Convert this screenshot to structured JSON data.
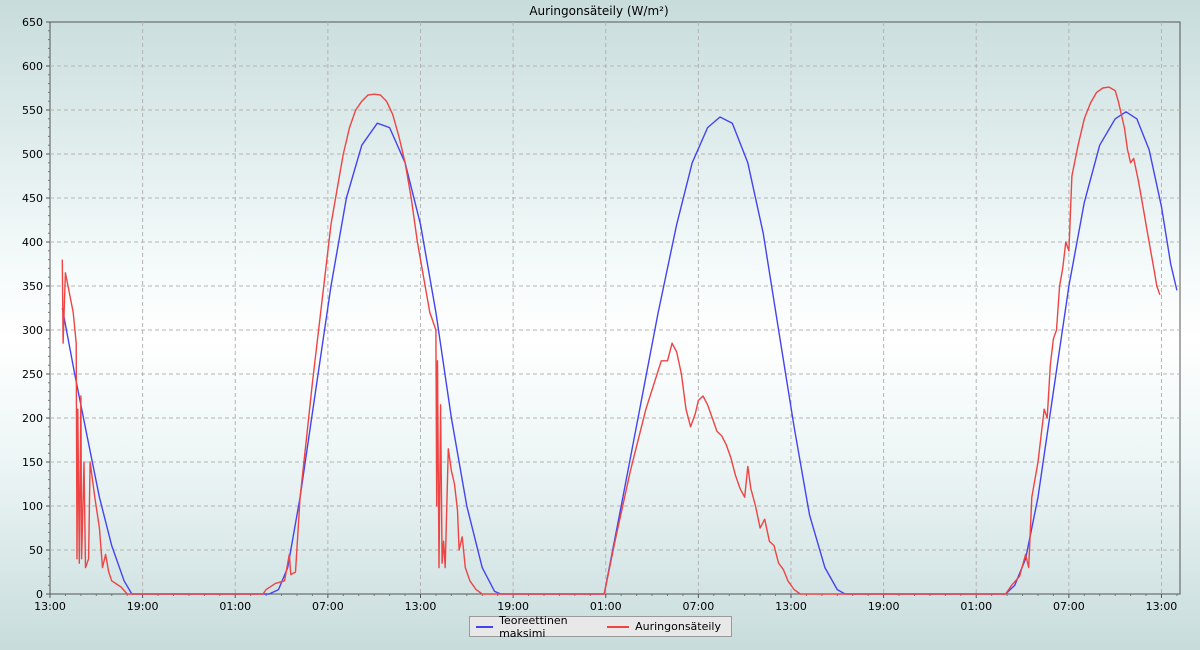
{
  "chart_data": {
    "type": "line",
    "title": "Auringonsäteily (W/m²)",
    "xlabel": "",
    "ylabel": "",
    "ylim": [
      0,
      650
    ],
    "yticks": [
      0,
      50,
      100,
      150,
      200,
      250,
      300,
      350,
      400,
      450,
      500,
      550,
      600,
      650
    ],
    "x_tick_labels": [
      {
        "hour": 0,
        "label": "13:00"
      },
      {
        "hour": 6,
        "label": "19:00"
      },
      {
        "hour": 12,
        "label": "01:00"
      },
      {
        "hour": 18,
        "label": "07:00"
      },
      {
        "hour": 24,
        "label": "13:00"
      },
      {
        "hour": 30,
        "label": "19:00"
      },
      {
        "hour": 36,
        "label": "01:00"
      },
      {
        "hour": 42,
        "label": "07:00"
      },
      {
        "hour": 48,
        "label": "13:00"
      },
      {
        "hour": 54,
        "label": "19:00"
      },
      {
        "hour": 60,
        "label": "01:00"
      },
      {
        "hour": 66,
        "label": "07:00"
      },
      {
        "hour": 72,
        "label": "13:00"
      }
    ],
    "xlim_hours": [
      0,
      73.2
    ],
    "grid": true,
    "legend_position": "bottom-center",
    "series": [
      {
        "name": "Teoreettinen maksimi",
        "color": "#4444ee",
        "points": [
          [
            0.8,
            325
          ],
          [
            1.6,
            250
          ],
          [
            2.4,
            180
          ],
          [
            3.2,
            110
          ],
          [
            4.0,
            55
          ],
          [
            4.8,
            15
          ],
          [
            5.3,
            0
          ],
          [
            14.2,
            0
          ],
          [
            14.8,
            5
          ],
          [
            15.4,
            30
          ],
          [
            16.2,
            110
          ],
          [
            17.2,
            230
          ],
          [
            18.2,
            350
          ],
          [
            19.2,
            450
          ],
          [
            20.2,
            510
          ],
          [
            21.2,
            535
          ],
          [
            22.0,
            530
          ],
          [
            23.0,
            490
          ],
          [
            24.0,
            420
          ],
          [
            25.0,
            320
          ],
          [
            26.0,
            200
          ],
          [
            27.0,
            100
          ],
          [
            28.0,
            30
          ],
          [
            28.8,
            3
          ],
          [
            29.2,
            0
          ],
          [
            35.9,
            0
          ],
          [
            37.0,
            100
          ],
          [
            38.2,
            210
          ],
          [
            39.4,
            320
          ],
          [
            40.6,
            420
          ],
          [
            41.6,
            490
          ],
          [
            42.6,
            530
          ],
          [
            43.4,
            542
          ],
          [
            44.2,
            535
          ],
          [
            45.2,
            490
          ],
          [
            46.2,
            410
          ],
          [
            47.2,
            300
          ],
          [
            48.2,
            190
          ],
          [
            49.2,
            90
          ],
          [
            50.2,
            30
          ],
          [
            51.0,
            5
          ],
          [
            51.5,
            0
          ],
          [
            61.9,
            0
          ],
          [
            62.5,
            10
          ],
          [
            63.2,
            40
          ],
          [
            64.0,
            110
          ],
          [
            65.0,
            230
          ],
          [
            66.0,
            350
          ],
          [
            67.0,
            445
          ],
          [
            68.0,
            510
          ],
          [
            69.0,
            540
          ],
          [
            69.7,
            548
          ],
          [
            70.4,
            540
          ],
          [
            71.2,
            505
          ],
          [
            72.0,
            440
          ],
          [
            72.6,
            375
          ],
          [
            73.0,
            345
          ]
        ]
      },
      {
        "name": "Auringonsäteily",
        "color": "#ee4444",
        "points": [
          [
            0.8,
            380
          ],
          [
            0.85,
            285
          ],
          [
            1.0,
            365
          ],
          [
            1.5,
            320
          ],
          [
            1.7,
            285
          ],
          [
            1.75,
            40
          ],
          [
            1.8,
            210
          ],
          [
            1.9,
            35
          ],
          [
            2.0,
            225
          ],
          [
            2.05,
            40
          ],
          [
            2.2,
            150
          ],
          [
            2.3,
            30
          ],
          [
            2.5,
            40
          ],
          [
            2.6,
            150
          ],
          [
            2.9,
            110
          ],
          [
            3.2,
            75
          ],
          [
            3.4,
            30
          ],
          [
            3.6,
            45
          ],
          [
            3.8,
            25
          ],
          [
            4.0,
            15
          ],
          [
            4.6,
            8
          ],
          [
            5.0,
            0
          ],
          [
            13.8,
            0
          ],
          [
            14.0,
            5
          ],
          [
            14.6,
            12
          ],
          [
            15.2,
            15
          ],
          [
            15.5,
            45
          ],
          [
            15.6,
            22
          ],
          [
            15.9,
            25
          ],
          [
            16.2,
            110
          ],
          [
            16.6,
            175
          ],
          [
            17.0,
            240
          ],
          [
            17.4,
            300
          ],
          [
            17.8,
            360
          ],
          [
            18.2,
            420
          ],
          [
            18.6,
            460
          ],
          [
            19.0,
            500
          ],
          [
            19.4,
            530
          ],
          [
            19.8,
            550
          ],
          [
            20.2,
            560
          ],
          [
            20.6,
            567
          ],
          [
            21.0,
            568
          ],
          [
            21.4,
            567
          ],
          [
            21.8,
            560
          ],
          [
            22.2,
            545
          ],
          [
            22.6,
            520
          ],
          [
            23.0,
            490
          ],
          [
            23.4,
            450
          ],
          [
            23.8,
            400
          ],
          [
            24.2,
            360
          ],
          [
            24.6,
            320
          ],
          [
            25.0,
            300
          ],
          [
            25.05,
            100
          ],
          [
            25.1,
            265
          ],
          [
            25.2,
            30
          ],
          [
            25.3,
            215
          ],
          [
            25.4,
            35
          ],
          [
            25.5,
            60
          ],
          [
            25.6,
            30
          ],
          [
            25.8,
            165
          ],
          [
            26.0,
            140
          ],
          [
            26.2,
            125
          ],
          [
            26.4,
            95
          ],
          [
            26.5,
            50
          ],
          [
            26.7,
            65
          ],
          [
            26.9,
            30
          ],
          [
            27.2,
            15
          ],
          [
            27.6,
            5
          ],
          [
            28.0,
            0
          ],
          [
            35.9,
            0
          ],
          [
            36.6,
            60
          ],
          [
            37.6,
            140
          ],
          [
            38.6,
            210
          ],
          [
            39.6,
            265
          ],
          [
            40.0,
            265
          ],
          [
            40.3,
            285
          ],
          [
            40.6,
            275
          ],
          [
            40.9,
            250
          ],
          [
            41.2,
            210
          ],
          [
            41.5,
            190
          ],
          [
            41.8,
            205
          ],
          [
            42.0,
            220
          ],
          [
            42.3,
            225
          ],
          [
            42.6,
            215
          ],
          [
            42.9,
            200
          ],
          [
            43.2,
            185
          ],
          [
            43.5,
            180
          ],
          [
            43.8,
            170
          ],
          [
            44.1,
            155
          ],
          [
            44.4,
            135
          ],
          [
            44.7,
            120
          ],
          [
            45.0,
            110
          ],
          [
            45.2,
            145
          ],
          [
            45.4,
            120
          ],
          [
            45.7,
            100
          ],
          [
            46.0,
            75
          ],
          [
            46.3,
            85
          ],
          [
            46.6,
            60
          ],
          [
            46.9,
            55
          ],
          [
            47.2,
            35
          ],
          [
            47.5,
            28
          ],
          [
            47.8,
            15
          ],
          [
            48.2,
            5
          ],
          [
            48.6,
            0
          ],
          [
            61.9,
            0
          ],
          [
            62.3,
            10
          ],
          [
            62.8,
            20
          ],
          [
            63.2,
            45
          ],
          [
            63.4,
            30
          ],
          [
            63.6,
            110
          ],
          [
            64.0,
            150
          ],
          [
            64.4,
            210
          ],
          [
            64.6,
            200
          ],
          [
            64.8,
            260
          ],
          [
            65.0,
            290
          ],
          [
            65.2,
            300
          ],
          [
            65.4,
            350
          ],
          [
            65.6,
            370
          ],
          [
            65.8,
            400
          ],
          [
            66.0,
            390
          ],
          [
            66.2,
            475
          ],
          [
            66.6,
            510
          ],
          [
            67.0,
            540
          ],
          [
            67.4,
            558
          ],
          [
            67.8,
            570
          ],
          [
            68.2,
            575
          ],
          [
            68.6,
            576
          ],
          [
            69.0,
            572
          ],
          [
            69.2,
            560
          ],
          [
            69.4,
            545
          ],
          [
            69.6,
            530
          ],
          [
            69.8,
            505
          ],
          [
            70.0,
            490
          ],
          [
            70.2,
            495
          ],
          [
            70.5,
            470
          ],
          [
            70.8,
            440
          ],
          [
            71.0,
            420
          ],
          [
            71.2,
            400
          ],
          [
            71.5,
            370
          ],
          [
            71.7,
            350
          ],
          [
            71.9,
            340
          ]
        ]
      }
    ]
  },
  "legend": {
    "items": [
      {
        "label": "Teoreettinen maksimi",
        "color": "#4444ee"
      },
      {
        "label": "Auringonsäteily",
        "color": "#ee4444"
      }
    ]
  }
}
